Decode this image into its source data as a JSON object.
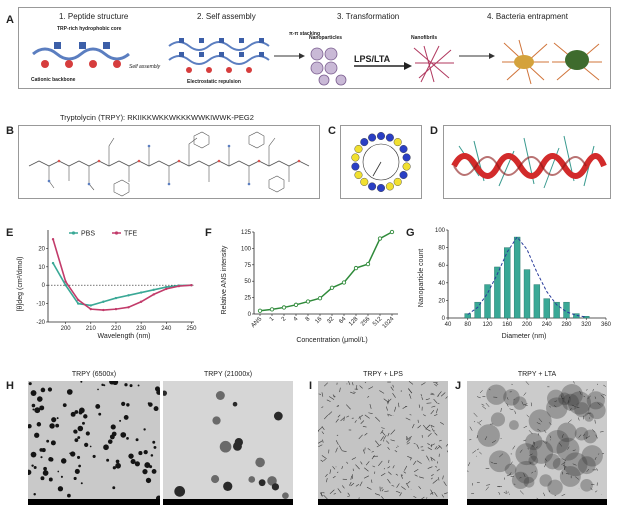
{
  "panelA": {
    "label": "A",
    "step1": "1. Peptide structure",
    "step2": "2. Self assembly",
    "step3": "3. Transformation",
    "step4": "4. Bacteria entrapment",
    "core_label": "TRP-rich hydrophobic core",
    "backbone_label": "Cationic backbone",
    "self_assembly_label": "Self assembly",
    "pi_label": "π-π stacking",
    "repulsion_label": "Electrostatic repulsion",
    "nanoparticles_label": "Nanoparticles",
    "lps_lta": "LPS/LTA",
    "nanofibrils_label": "Nanofibrils"
  },
  "panelB": {
    "label": "B",
    "sequence": "Tryptolycin (TRPY): RKIIKKWKKWKKKWWKIWWK-PEG2"
  },
  "panelC": {
    "label": "C"
  },
  "panelD": {
    "label": "D"
  },
  "panelE": {
    "label": "E",
    "legend_pbs": "PBS",
    "legend_tfe": "TFE",
    "ylabel": "[θ]deg (cm²/dmol)",
    "xlabel": "Wavelength (nm)",
    "colors": {
      "pbs": "#3aa896",
      "tfe": "#c23b6a"
    }
  },
  "panelF": {
    "label": "F",
    "ylabel": "Relative ANS intensity",
    "xlabel": "Concentration (μmol/L)",
    "color": "#2f8a3a"
  },
  "panelG": {
    "label": "G",
    "ylabel": "Nanoparticle count",
    "xlabel": "Diameter (nm)",
    "bar_color": "#3aa896"
  },
  "panelH": {
    "label": "H",
    "title1": "TRPY (6500x)",
    "title2": "TRPY (21000x)"
  },
  "panelI": {
    "label": "I",
    "title": "TRPY + LPS"
  },
  "panelJ": {
    "label": "J",
    "title": "TRPY + LTA"
  },
  "chart_data": [
    {
      "type": "line",
      "panel": "E",
      "x": [
        195,
        200,
        205,
        210,
        215,
        220,
        225,
        230,
        235,
        240,
        245,
        250
      ],
      "series": [
        {
          "name": "PBS",
          "values": [
            12,
            0,
            -10,
            -11,
            -9,
            -7,
            -5.5,
            -4,
            -2.5,
            -1,
            -0.2,
            0
          ]
        },
        {
          "name": "TFE",
          "values": [
            25,
            2,
            -8,
            -13,
            -13.5,
            -13,
            -12,
            -9,
            -5,
            -2,
            -0.5,
            0
          ]
        }
      ],
      "xlim": [
        193,
        251
      ],
      "ylim": [
        -20,
        30
      ],
      "xticks": [
        200,
        210,
        220,
        230,
        240,
        250
      ],
      "yticks": [
        -20,
        -10,
        0,
        10,
        20
      ],
      "xlabel": "Wavelength (nm)",
      "ylabel": "[θ]deg (cm²/dmol)"
    },
    {
      "type": "line",
      "panel": "F",
      "categories": [
        "ANS",
        "1",
        "2",
        "4",
        "8",
        "16",
        "32",
        "64",
        "128",
        "256",
        "512",
        "1024"
      ],
      "values": [
        5,
        7,
        10,
        14,
        19,
        24,
        40,
        48,
        70,
        76,
        115,
        125
      ],
      "ylim": [
        0,
        125
      ],
      "yticks": [
        0,
        25,
        50,
        75,
        100,
        125
      ],
      "xlabel": "Concentration (μmol/L)",
      "ylabel": "Relative ANS intensity"
    },
    {
      "type": "bar",
      "panel": "G",
      "x": [
        80,
        100,
        120,
        140,
        160,
        180,
        200,
        220,
        240,
        260,
        280,
        300,
        320
      ],
      "values": [
        5,
        18,
        38,
        58,
        80,
        92,
        55,
        38,
        22,
        18,
        18,
        5,
        2
      ],
      "fit": [
        4,
        12,
        28,
        50,
        75,
        92,
        78,
        52,
        30,
        15,
        7,
        3,
        1
      ],
      "xlim": [
        40,
        360
      ],
      "ylim": [
        0,
        100
      ],
      "xticks": [
        40,
        80,
        120,
        160,
        200,
        240,
        280,
        320,
        360
      ],
      "yticks": [
        0,
        20,
        40,
        60,
        80,
        100
      ],
      "xlabel": "Diameter (nm)",
      "ylabel": "Nanoparticle count"
    }
  ]
}
